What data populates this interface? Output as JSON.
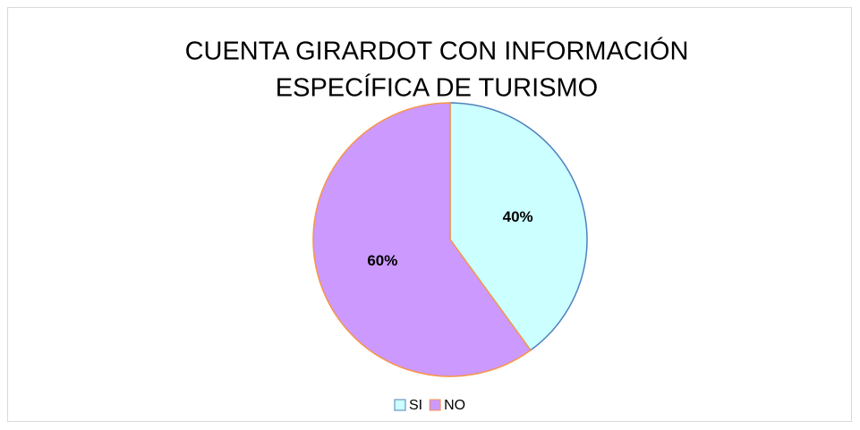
{
  "chart_data": {
    "type": "pie",
    "title": [
      "CUENTA GIRARDOT CON INFORMACIÓN",
      "ESPECÍFICA DE TURISMO"
    ],
    "categories": [
      "SI",
      "NO"
    ],
    "values": [
      40,
      60
    ],
    "value_labels": [
      "40%",
      "60%"
    ],
    "colors": [
      "#ccffff",
      "#cc99ff"
    ],
    "edge_colors": [
      "#4f81bd",
      "#f79646"
    ],
    "legend": "bottom"
  }
}
